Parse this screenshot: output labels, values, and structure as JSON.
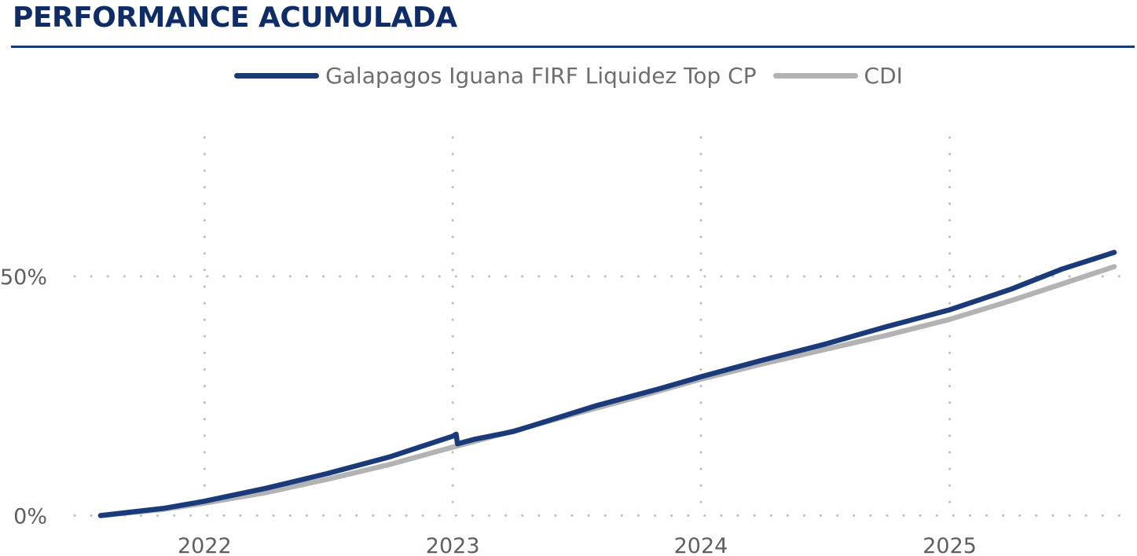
{
  "header": {
    "title": "PERFORMANCE ACUMULADA"
  },
  "chart_data": {
    "type": "line",
    "title": "PERFORMANCE ACUMULADA",
    "xlabel": "",
    "ylabel": "",
    "x_ticks": [
      "2022",
      "2023",
      "2024",
      "2025"
    ],
    "y_ticks": [
      "0%",
      "50%"
    ],
    "xlim": [
      "2021-08-01",
      "2025-08-31"
    ],
    "ylim": [
      -5,
      80
    ],
    "grid": true,
    "legend_position": "top-center",
    "colors": {
      "fund": "#1b3a7a",
      "cdi": "#b3b3b3",
      "grid": "#bdbdbd"
    },
    "series": [
      {
        "name": "Galapagos Iguana FIRF Liquidez Top CP",
        "color": "#1b3a7a",
        "points": [
          [
            "2021-08-01",
            0.0
          ],
          [
            "2021-11-01",
            1.5
          ],
          [
            "2022-01-01",
            3.0
          ],
          [
            "2022-04-01",
            5.7
          ],
          [
            "2022-07-01",
            8.8
          ],
          [
            "2022-10-01",
            12.3
          ],
          [
            "2023-01-01",
            16.6
          ],
          [
            "2023-01-06",
            17.0
          ],
          [
            "2023-01-08",
            15.0
          ],
          [
            "2023-02-01",
            15.9
          ],
          [
            "2023-04-01",
            17.6
          ],
          [
            "2023-08-01",
            23.0
          ],
          [
            "2023-11-01",
            26.5
          ],
          [
            "2024-01-01",
            29.0
          ],
          [
            "2024-04-01",
            32.5
          ],
          [
            "2024-07-01",
            35.8
          ],
          [
            "2024-10-01",
            39.5
          ],
          [
            "2025-01-01",
            43.0
          ],
          [
            "2025-04-01",
            47.3
          ],
          [
            "2025-06-15",
            51.5
          ],
          [
            "2025-08-31",
            55.0
          ]
        ]
      },
      {
        "name": "CDI",
        "color": "#b3b3b3",
        "points": [
          [
            "2021-08-01",
            0.0
          ],
          [
            "2021-11-01",
            1.3
          ],
          [
            "2022-01-01",
            2.6
          ],
          [
            "2022-04-01",
            4.8
          ],
          [
            "2022-07-01",
            7.6
          ],
          [
            "2022-10-01",
            10.7
          ],
          [
            "2023-01-01",
            14.3
          ],
          [
            "2023-04-01",
            17.7
          ],
          [
            "2023-07-01",
            21.3
          ],
          [
            "2023-10-01",
            24.8
          ],
          [
            "2024-01-01",
            28.5
          ],
          [
            "2024-04-01",
            31.7
          ],
          [
            "2024-07-01",
            34.7
          ],
          [
            "2024-10-01",
            37.7
          ],
          [
            "2025-01-01",
            41.0
          ],
          [
            "2025-04-01",
            44.9
          ],
          [
            "2025-06-15",
            48.4
          ],
          [
            "2025-08-31",
            52.0
          ]
        ]
      }
    ]
  }
}
